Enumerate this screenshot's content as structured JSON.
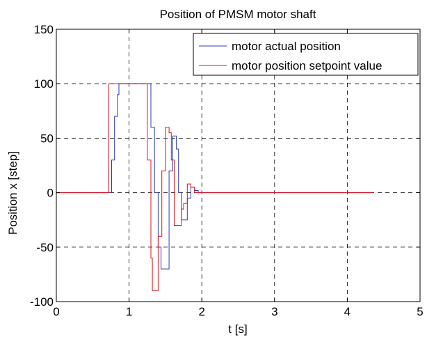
{
  "chart_data": {
    "type": "line",
    "title": "Position of PMSM motor shaft",
    "xlabel": "t [s]",
    "ylabel": "Position x [step]",
    "xlim": [
      0,
      5
    ],
    "ylim": [
      -100,
      150
    ],
    "xticks": [
      "0",
      "1",
      "2",
      "3",
      "4",
      "5"
    ],
    "yticks": [
      "150",
      "100",
      "50",
      "0",
      "-50",
      "-100"
    ],
    "grid": true,
    "legend_position": "top-right",
    "series": [
      {
        "name": "motor actual position",
        "color": "#2a3bb0",
        "x": [
          0.0,
          0.72,
          0.72,
          0.76,
          0.8,
          0.84,
          0.86,
          0.9,
          1.0,
          1.1,
          1.2,
          1.22,
          1.25,
          1.3,
          1.35,
          1.4,
          1.44,
          1.5,
          1.55,
          1.6,
          1.65,
          1.68,
          1.72,
          1.75,
          1.8,
          1.85,
          1.9,
          1.95,
          2.0,
          2.5,
          3.0,
          3.5,
          4.0,
          4.35
        ],
        "y": [
          0,
          0,
          0,
          30,
          70,
          90,
          100,
          100,
          100,
          100,
          100,
          100,
          100,
          60,
          0,
          -50,
          -70,
          -70,
          20,
          52,
          40,
          0,
          -25,
          -25,
          -5,
          5,
          2,
          0,
          0,
          0,
          0,
          0,
          0,
          0
        ]
      },
      {
        "name": "motor position setpoint value",
        "color": "#e0101b",
        "x": [
          0.0,
          0.68,
          0.68,
          0.72,
          0.8,
          0.9,
          1.0,
          1.1,
          1.2,
          1.25,
          1.3,
          1.32,
          1.35,
          1.4,
          1.45,
          1.5,
          1.55,
          1.58,
          1.62,
          1.68,
          1.72,
          1.75,
          1.8,
          1.85,
          1.9,
          2.0,
          2.5,
          3.0,
          3.5,
          4.0,
          4.35
        ],
        "y": [
          0,
          0,
          0,
          100,
          100,
          100,
          100,
          100,
          100,
          30,
          -60,
          -90,
          -90,
          -40,
          20,
          60,
          55,
          30,
          -30,
          -30,
          -15,
          -10,
          8,
          5,
          0,
          0,
          0,
          0,
          0,
          0,
          0
        ]
      }
    ]
  }
}
